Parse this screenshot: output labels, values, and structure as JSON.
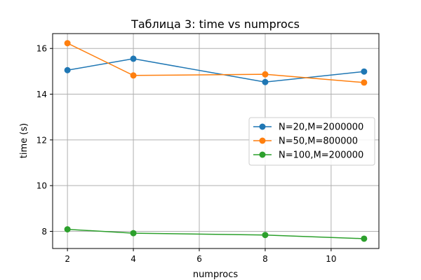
{
  "chart_data": {
    "type": "line",
    "title": "Таблица 3: time vs numprocs",
    "xlabel": "numprocs",
    "ylabel": "time (s)",
    "xlim": [
      1.55,
      11.45
    ],
    "ylim": [
      7.25,
      16.65
    ],
    "xticks": [
      2,
      4,
      6,
      8,
      10
    ],
    "yticks": [
      8,
      10,
      12,
      14,
      16
    ],
    "grid": true,
    "legend_position": "center-right",
    "series": [
      {
        "name": "N=20,M=2000000",
        "color": "#1f77b4",
        "x": [
          2,
          4,
          8,
          11
        ],
        "y": [
          15.05,
          15.55,
          14.53,
          14.99
        ]
      },
      {
        "name": "N=50,M=800000",
        "color": "#ff7f0e",
        "x": [
          2,
          4,
          8,
          11
        ],
        "y": [
          16.23,
          14.82,
          14.87,
          14.51
        ]
      },
      {
        "name": "N=100,M=200000",
        "color": "#2ca02c",
        "x": [
          2,
          4,
          8,
          11
        ],
        "y": [
          8.09,
          7.92,
          7.84,
          7.68
        ]
      }
    ]
  }
}
